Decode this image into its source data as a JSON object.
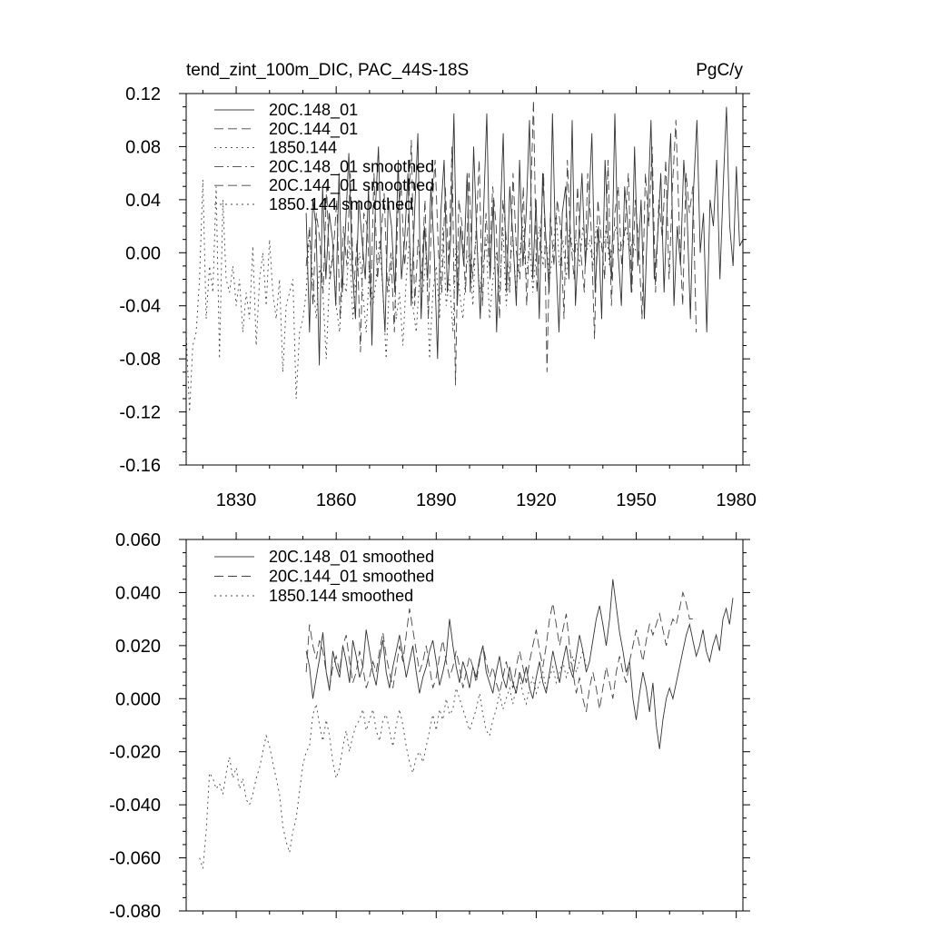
{
  "chart_data": [
    {
      "type": "line",
      "title": "tend_zint_100m_DIC, PAC_44S-18S",
      "units": "PgC/y",
      "xlabel": "",
      "ylabel": "",
      "xlim": [
        1815,
        1982
      ],
      "ylim": [
        -0.16,
        0.12
      ],
      "xticks": [
        1830,
        1860,
        1890,
        1920,
        1950,
        1980
      ],
      "xtick_labels": [
        "1830",
        "1860",
        "1890",
        "1920",
        "1950",
        "1980"
      ],
      "yticks": [
        -0.16,
        -0.12,
        -0.08,
        -0.04,
        0.0,
        0.04,
        0.08,
        0.12
      ],
      "ytick_labels": [
        "-0.16",
        "-0.12",
        "-0.08",
        "-0.04",
        "0.00",
        "0.04",
        "0.08",
        "0.12"
      ],
      "legend_position": "top-left",
      "series": [
        {
          "name": "20C.148_01",
          "style": "solid",
          "x_start": 1851,
          "x_end": 1982,
          "values": [
            0.03,
            -0.06,
            0.04,
            0.02,
            -0.085,
            0.05,
            -0.02,
            0.03,
            0.01,
            -0.04,
            0.06,
            -0.03,
            0.02,
            0.075,
            -0.01,
            -0.05,
            0.04,
            0.01,
            -0.02,
            0.05,
            -0.07,
            0.03,
            0.08,
            -0.01,
            -0.06,
            0.04,
            0.02,
            -0.03,
            0.07,
            -0.02,
            0.01,
            0.06,
            -0.04,
            0.03,
            0.09,
            -0.05,
            0.02,
            -0.02,
            0.05,
            0.0,
            -0.08,
            0.03,
            0.07,
            -0.03,
            0.01,
            0.105,
            -0.04,
            0.02,
            -0.01,
            0.06,
            -0.03,
            0.08,
            0.01,
            -0.05,
            0.03,
            0.105,
            -0.02,
            0.04,
            -0.06,
            0.02,
            0.09,
            -0.03,
            0.05,
            0.01,
            -0.04,
            0.07,
            -0.01,
            0.03,
            0.1,
            -0.02,
            0.04,
            -0.05,
            0.06,
            0.01,
            -0.03,
            0.105,
            0.0,
            -0.06,
            0.03,
            0.05,
            -0.02,
            0.1,
            -0.04,
            0.01,
            0.06,
            -0.01,
            0.03,
            0.09,
            -0.03,
            0.02,
            -0.05,
            0.07,
            0.01,
            -0.02,
            0.105,
            0.0,
            -0.04,
            0.05,
            0.02,
            -0.03,
            0.08,
            -0.01,
            0.04,
            -0.05,
            0.03,
            0.1,
            -0.02,
            0.01,
            0.06,
            -0.03,
            0.04,
            0.09,
            -0.04,
            0.02,
            -0.01,
            0.07,
            0.03,
            -0.05,
            0.05,
            0.1,
            0.0,
            0.03,
            -0.06,
            0.04,
            0.02,
            0.07,
            -0.02,
            0.05,
            0.11,
            0.02,
            -0.01,
            0.065,
            0.005,
            0.01
          ]
        },
        {
          "name": "20C.144_01",
          "style": "dashed",
          "x_start": 1851,
          "x_end": 1968,
          "values": [
            -0.01,
            0.02,
            -0.04,
            0.03,
            0.01,
            -0.03,
            0.05,
            -0.02,
            0.0,
            0.04,
            -0.05,
            0.02,
            -0.01,
            0.06,
            -0.03,
            0.01,
            -0.075,
            0.03,
            0.02,
            -0.04,
            0.06,
            -0.02,
            0.01,
            0.045,
            -0.03,
            0.0,
            -0.06,
            0.03,
            0.05,
            -0.01,
            0.02,
            0.085,
            -0.04,
            0.01,
            -0.02,
            0.04,
            -0.05,
            0.03,
            0.07,
            0.0,
            -0.03,
            0.05,
            -0.01,
            0.08,
            -0.1,
            0.04,
            0.02,
            -0.03,
            0.06,
            -0.02,
            0.01,
            0.07,
            -0.04,
            0.03,
            -0.01,
            0.05,
            0.02,
            -0.05,
            0.04,
            0.01,
            -0.03,
            0.06,
            0.0,
            -0.02,
            0.05,
            -0.04,
            0.02,
            0.115,
            -0.03,
            0.01,
            0.06,
            -0.09,
            0.03,
            -0.01,
            0.04,
            0.02,
            -0.05,
            0.07,
            0.01,
            -0.02,
            0.05,
            0.0,
            -0.03,
            0.06,
            0.02,
            -0.065,
            0.04,
            0.01,
            -0.02,
            0.07,
            -0.04,
            0.03,
            0.05,
            -0.01,
            0.02,
            0.06,
            -0.03,
            0.04,
            0.01,
            -0.05,
            0.06,
            0.02,
            0.08,
            -0.03,
            0.04,
            0.01,
            0.07,
            -0.02,
            0.05,
            0.1,
            0.02,
            -0.04,
            0.06,
            0.03,
            0.05,
            -0.06
          ]
        },
        {
          "name": "1850.144",
          "style": "dotted",
          "x_start": 1815,
          "x_end": 1950,
          "values": [
            -0.06,
            -0.12,
            -0.07,
            -0.06,
            -0.02,
            0.055,
            -0.05,
            -0.01,
            -0.03,
            0.05,
            -0.08,
            0.04,
            -0.02,
            -0.03,
            -0.01,
            -0.04,
            -0.02,
            -0.06,
            -0.03,
            -0.05,
            0.005,
            -0.07,
            -0.02,
            0.0,
            -0.04,
            0.01,
            -0.03,
            -0.05,
            -0.02,
            -0.09,
            -0.04,
            -0.03,
            -0.02,
            -0.11,
            -0.06,
            -0.05,
            -0.03,
            0.015,
            -0.02,
            -0.05,
            -0.01,
            -0.03,
            -0.08,
            -0.02,
            0.0,
            -0.04,
            -0.06,
            -0.02,
            -0.03,
            0.01,
            -0.05,
            -0.02,
            0.0,
            -0.03,
            -0.06,
            -0.01,
            -0.04,
            -0.02,
            0.01,
            -0.03,
            -0.08,
            -0.02,
            0.0,
            -0.05,
            -0.03,
            -0.07,
            -0.02,
            0.01,
            -0.04,
            -0.06,
            -0.02,
            -0.03,
            0.0,
            -0.08,
            -0.03,
            -0.01,
            -0.05,
            0.02,
            -0.04,
            -0.02,
            -0.06,
            0.01,
            -0.03,
            -0.05,
            -0.01,
            0.0,
            -0.04,
            0.02,
            -0.03,
            -0.01,
            0.01,
            -0.05,
            -0.02,
            0.0,
            -0.03,
            0.02,
            -0.04,
            -0.01,
            0.01,
            -0.03,
            0.0,
            0.02,
            -0.02,
            0.01,
            -0.03,
            0.0,
            0.02,
            -0.01,
            0.01,
            -0.02,
            0.0,
            0.03,
            -0.01,
            0.01,
            -0.02,
            0.02,
            0.0,
            0.01,
            -0.01,
            0.02,
            0.0,
            0.01,
            -0.01,
            0.02,
            0.01,
            0.0,
            0.02,
            -0.01,
            0.01,
            0.02,
            0.0,
            0.01,
            0.02,
            0.0,
            0.01,
            0.0
          ]
        }
      ]
    },
    {
      "type": "line",
      "title": "",
      "xlabel": "",
      "ylabel": "",
      "xlim": [
        1815,
        1982
      ],
      "ylim": [
        -0.08,
        0.06
      ],
      "xticks": [
        1830,
        1860,
        1890,
        1920,
        1950,
        1980
      ],
      "yticks": [
        -0.08,
        -0.06,
        -0.04,
        -0.02,
        0.0,
        0.02,
        0.04,
        0.06
      ],
      "ytick_labels": [
        "-0.080",
        "-0.060",
        "-0.040",
        "-0.020",
        "0.000",
        "0.020",
        "0.040",
        "0.060"
      ],
      "legend_position": "top-left",
      "series": [
        {
          "name": "20C.148_01 smoothed",
          "style": "solid",
          "x_start": 1851,
          "x_end": 1979,
          "values": [
            0.018,
            0.012,
            0.0,
            0.008,
            0.015,
            0.025,
            0.01,
            0.003,
            0.018,
            0.012,
            0.008,
            0.02,
            0.014,
            0.006,
            0.022,
            0.016,
            0.008,
            0.012,
            0.026,
            0.018,
            0.01,
            0.005,
            0.015,
            0.022,
            0.01,
            0.004,
            0.012,
            0.018,
            0.024,
            0.016,
            0.008,
            0.014,
            0.02,
            0.01,
            0.002,
            0.008,
            0.012,
            0.018,
            0.022,
            0.014,
            0.005,
            0.01,
            0.016,
            0.03,
            0.02,
            0.012,
            0.006,
            0.014,
            0.01,
            0.004,
            0.012,
            0.008,
            0.015,
            0.02,
            0.01,
            0.006,
            0.002,
            0.01,
            0.016,
            0.008,
            0.004,
            0.012,
            0.006,
            0.002,
            0.01,
            0.006,
            0.012,
            0.004,
            0.0,
            0.008,
            0.014,
            0.006,
            0.002,
            0.01,
            0.018,
            0.012,
            0.006,
            0.014,
            0.02,
            0.012,
            0.008,
            0.016,
            0.024,
            0.018,
            0.01,
            0.014,
            0.022,
            0.03,
            0.035,
            0.028,
            0.02,
            0.03,
            0.045,
            0.035,
            0.025,
            0.018,
            0.01,
            0.014,
            0.0,
            -0.008,
            0.002,
            0.01,
            0.004,
            -0.005,
            0.006,
            -0.01,
            -0.019,
            -0.008,
            0.0,
            0.004,
            0.0,
            0.006,
            0.012,
            0.018,
            0.024,
            0.028,
            0.022,
            0.016,
            0.02,
            0.026,
            0.018,
            0.014,
            0.02,
            0.024,
            0.018,
            0.03,
            0.034,
            0.028,
            0.038
          ]
        },
        {
          "name": "20C.144_01 smoothed",
          "style": "dashed",
          "x_start": 1851,
          "x_end": 1967,
          "values": [
            0.01,
            0.028,
            0.02,
            0.015,
            0.022,
            0.018,
            0.01,
            0.004,
            0.012,
            0.016,
            0.01,
            0.02,
            0.024,
            0.014,
            0.006,
            0.01,
            0.018,
            0.012,
            0.004,
            0.008,
            0.014,
            0.01,
            0.018,
            0.025,
            0.016,
            0.01,
            0.004,
            0.012,
            0.02,
            0.014,
            0.024,
            0.034,
            0.026,
            0.018,
            0.01,
            0.014,
            0.02,
            0.012,
            0.004,
            0.008,
            0.016,
            0.022,
            0.014,
            0.008,
            0.012,
            0.018,
            0.012,
            0.004,
            0.01,
            0.016,
            0.012,
            0.006,
            0.014,
            0.02,
            0.014,
            0.008,
            0.012,
            0.006,
            0.002,
            0.008,
            0.014,
            0.008,
            0.004,
            0.012,
            0.018,
            0.012,
            0.006,
            0.014,
            0.02,
            0.026,
            0.018,
            0.012,
            0.02,
            0.03,
            0.036,
            0.028,
            0.02,
            0.026,
            0.032,
            0.02,
            0.01,
            0.002,
            0.008,
            0.0,
            -0.005,
            0.004,
            0.01,
            0.004,
            -0.004,
            0.004,
            0.012,
            0.006,
            0.0,
            0.01,
            0.016,
            0.01,
            0.006,
            0.014,
            0.02,
            0.026,
            0.02,
            0.014,
            0.022,
            0.028,
            0.024,
            0.028,
            0.032,
            0.026,
            0.02,
            0.026,
            0.03,
            0.028,
            0.034,
            0.04,
            0.036,
            0.03,
            0.03
          ]
        },
        {
          "name": "1850.144 smoothed",
          "style": "dotted",
          "x_start": 1819,
          "x_end": 1935,
          "values": [
            -0.06,
            -0.064,
            -0.05,
            -0.028,
            -0.03,
            -0.034,
            -0.032,
            -0.036,
            -0.028,
            -0.022,
            -0.03,
            -0.026,
            -0.034,
            -0.03,
            -0.038,
            -0.04,
            -0.036,
            -0.03,
            -0.026,
            -0.02,
            -0.014,
            -0.018,
            -0.024,
            -0.03,
            -0.036,
            -0.048,
            -0.054,
            -0.058,
            -0.05,
            -0.045,
            -0.035,
            -0.025,
            -0.02,
            -0.018,
            -0.006,
            -0.002,
            -0.01,
            -0.016,
            -0.008,
            -0.014,
            -0.024,
            -0.03,
            -0.026,
            -0.018,
            -0.012,
            -0.02,
            -0.014,
            -0.01,
            -0.008,
            -0.004,
            -0.012,
            -0.008,
            -0.004,
            -0.012,
            -0.016,
            -0.008,
            -0.006,
            -0.012,
            -0.018,
            -0.01,
            -0.004,
            -0.01,
            -0.018,
            -0.024,
            -0.028,
            -0.022,
            -0.02,
            -0.024,
            -0.018,
            -0.012,
            -0.006,
            -0.012,
            -0.004,
            -0.008,
            0.0,
            -0.006,
            -0.004,
            0.004,
            0.0,
            -0.004,
            -0.008,
            -0.012,
            -0.008,
            -0.004,
            0.002,
            -0.006,
            -0.012,
            -0.014,
            -0.008,
            -0.004,
            0.002,
            -0.004,
            0.0,
            0.004,
            -0.002,
            0.004,
            0.008,
            0.002,
            -0.002,
            0.004,
            0.008,
            0.002,
            0.006,
            0.01,
            0.004,
            0.008,
            0.012,
            0.006,
            0.01,
            0.014,
            0.008,
            0.012,
            0.016,
            0.01,
            0.014,
            0.018,
            0.012
          ]
        }
      ]
    }
  ]
}
